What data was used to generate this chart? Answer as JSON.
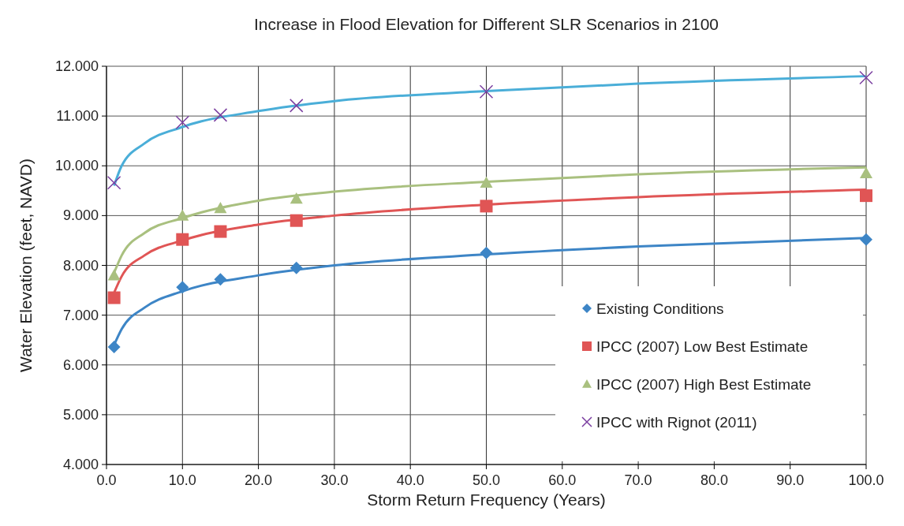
{
  "chart_data": {
    "type": "scatter",
    "title": "Increase in Flood Elevation for Different SLR Scenarios in 2100",
    "xlabel": "Storm Return Frequency (Years)",
    "ylabel": "Water Elevation (feet, NAVD)",
    "x": [
      1,
      10,
      15,
      25,
      50,
      100
    ],
    "series": [
      {
        "name": "Existing Conditions",
        "color": "#3d85c6",
        "marker": "diamond",
        "values": [
          6.36,
          7.56,
          7.72,
          7.95,
          8.25,
          8.52
        ]
      },
      {
        "name": "IPCC (2007) Low Best Estimate",
        "color": "#e05555",
        "marker": "square",
        "values": [
          7.35,
          8.52,
          8.68,
          8.9,
          9.19,
          9.4
        ]
      },
      {
        "name": "IPCC (2007) High Best Estimate",
        "color": "#a9c07f",
        "marker": "triangle",
        "values": [
          7.8,
          9.0,
          9.15,
          9.34,
          9.66,
          9.85
        ]
      },
      {
        "name": "IPCC with Rignot (2011)",
        "color": "#7a3ea0",
        "marker": "cross",
        "values": [
          9.66,
          10.87,
          11.02,
          11.21,
          11.49,
          11.77
        ]
      },
      {
        "type": "line",
        "color": "#3d85c6",
        "x": [
          1,
          2,
          5,
          10,
          20,
          30,
          50,
          70,
          100
        ],
        "values": [
          6.4,
          6.72,
          7.15,
          7.48,
          7.8,
          8.0,
          8.22,
          8.38,
          8.55
        ]
      },
      {
        "type": "line",
        "color": "#e05555",
        "x": [
          1,
          2,
          5,
          10,
          20,
          30,
          50,
          70,
          100
        ],
        "values": [
          7.45,
          7.78,
          8.2,
          8.5,
          8.82,
          9.0,
          9.22,
          9.37,
          9.52
        ]
      },
      {
        "type": "line",
        "color": "#a9c07f",
        "x": [
          1,
          2,
          5,
          10,
          20,
          30,
          50,
          70,
          100
        ],
        "values": [
          7.85,
          8.2,
          8.65,
          8.95,
          9.3,
          9.48,
          9.68,
          9.83,
          9.97
        ]
      },
      {
        "type": "line",
        "color": "#4aaed8",
        "x": [
          1,
          2,
          5,
          10,
          20,
          30,
          50,
          70,
          100
        ],
        "values": [
          9.6,
          10.0,
          10.45,
          10.78,
          11.1,
          11.3,
          11.5,
          11.65,
          11.8
        ]
      }
    ],
    "xlim": [
      0,
      100
    ],
    "xticks": [
      {
        "value": 0,
        "label": "0.0"
      },
      {
        "value": 10,
        "label": "10.0"
      },
      {
        "value": 20,
        "label": "20.0"
      },
      {
        "value": 30,
        "label": "30.0"
      },
      {
        "value": 40,
        "label": "40.0"
      },
      {
        "value": 50,
        "label": "50.0"
      },
      {
        "value": 60,
        "label": "60.0"
      },
      {
        "value": 70,
        "label": "70.0"
      },
      {
        "value": 80,
        "label": "80.0"
      },
      {
        "value": 90,
        "label": "90.0"
      },
      {
        "value": 100,
        "label": "100.0"
      }
    ],
    "ylim": [
      4,
      12
    ],
    "yticks": [
      {
        "value": 4,
        "label": "4.000"
      },
      {
        "value": 5,
        "label": "5.000"
      },
      {
        "value": 6,
        "label": "6.000"
      },
      {
        "value": 7,
        "label": "7.000"
      },
      {
        "value": 8,
        "label": "8.000"
      },
      {
        "value": 9,
        "label": "9.000"
      },
      {
        "value": 10,
        "label": "10.000"
      },
      {
        "value": 11,
        "label": "11.000"
      },
      {
        "value": 12,
        "label": "12.000"
      }
    ],
    "grid": true,
    "legend": "bottom right"
  }
}
